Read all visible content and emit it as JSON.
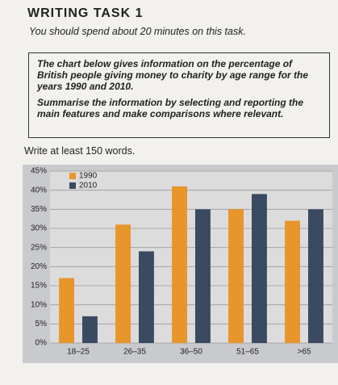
{
  "header": {
    "title": "WRITING TASK 1",
    "subtitle": "You should spend about 20 minutes on this task."
  },
  "task": {
    "prompt": "The chart below gives information on the percentage of British people giving money to charity by age range for the years 1990 and 2010.",
    "instruction": "Summarise the information by selecting and reporting the main features and make comparisons where relevant."
  },
  "word_count_note": "Write at least 150 words.",
  "chart_data": {
    "type": "bar",
    "categories": [
      "18–25",
      "26–35",
      "36–50",
      "51–65",
      ">65"
    ],
    "series": [
      {
        "name": "1990",
        "color": "#e8952c",
        "values": [
          17,
          31,
          41,
          35,
          32
        ]
      },
      {
        "name": "2010",
        "color": "#3a4a60",
        "values": [
          7,
          24,
          35,
          39,
          35
        ]
      }
    ],
    "ylim": [
      0,
      45
    ],
    "yticks": [
      {
        "value": 0,
        "label": "0%"
      },
      {
        "value": 5,
        "label": "5%"
      },
      {
        "value": 10,
        "label": "10%"
      },
      {
        "value": 15,
        "label": "15%"
      },
      {
        "value": 20,
        "label": "20%"
      },
      {
        "value": 25,
        "label": "25%"
      },
      {
        "value": 30,
        "label": "30%"
      },
      {
        "value": 35,
        "label": "35%"
      },
      {
        "value": 40,
        "label": "40%"
      },
      {
        "value": 45,
        "label": "45%"
      }
    ],
    "grid": true,
    "legend": "upper left"
  }
}
